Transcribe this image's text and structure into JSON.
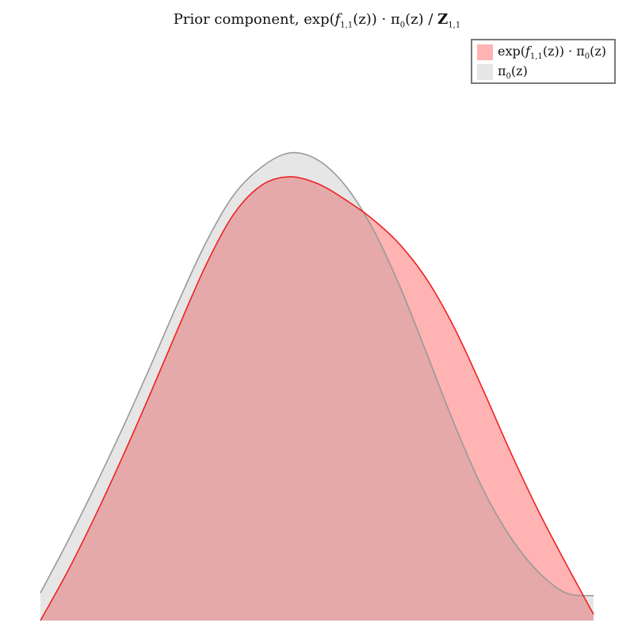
{
  "chart_data": {
    "type": "area",
    "title": "Prior component, exp(f1,1(z)) · π0(z) / Z1,1",
    "title_parts": {
      "prefix": "Prior component, exp(",
      "f": "f",
      "f_sub": "1,1",
      "mid": "(z)) · π",
      "pi_sub": "0",
      "tail": "(z) / ",
      "Z": "Z",
      "Z_sub": "1,1"
    },
    "xlabel": "",
    "ylabel": "",
    "axes_visible": false,
    "grid": false,
    "legend_placement": "top-right",
    "xlim": [
      0,
      1
    ],
    "ylim": [
      0,
      1.02
    ],
    "series": [
      {
        "name": "exp(f1,1(z)) · π0(z)",
        "legend_parts": {
          "prefix": "exp(",
          "f": "f",
          "f_sub": "1,1",
          "mid": "(z)) · π",
          "pi_sub": "0",
          "tail": "(z)"
        },
        "fill": "#ffb3b3",
        "line": "#ee2222",
        "x": [
          0,
          0.05,
          0.1,
          0.15,
          0.2,
          0.25,
          0.3,
          0.35,
          0.4,
          0.45,
          0.5,
          0.55,
          0.6,
          0.65,
          0.7,
          0.75,
          0.8,
          0.85,
          0.9,
          0.95,
          1
        ],
        "y": [
          0,
          0.107,
          0.226,
          0.354,
          0.489,
          0.628,
          0.762,
          0.87,
          0.931,
          0.949,
          0.935,
          0.901,
          0.859,
          0.804,
          0.727,
          0.622,
          0.494,
          0.36,
          0.235,
          0.122,
          0.013
        ]
      },
      {
        "name": "π0(z)",
        "legend_parts": {
          "prefix": "π",
          "pi_sub": "0",
          "tail": "(z)"
        },
        "fill": "#e6e6e6",
        "line": "#999999",
        "x": [
          0,
          0.05,
          0.1,
          0.15,
          0.2,
          0.25,
          0.3,
          0.35,
          0.4,
          0.45,
          0.5,
          0.55,
          0.6,
          0.65,
          0.7,
          0.75,
          0.8,
          0.85,
          0.9,
          0.95,
          1
        ],
        "y": [
          0.059,
          0.171,
          0.29,
          0.415,
          0.547,
          0.683,
          0.81,
          0.911,
          0.97,
          1.0,
          0.986,
          0.932,
          0.84,
          0.714,
          0.566,
          0.415,
          0.281,
          0.178,
          0.104,
          0.059,
          0.053
        ]
      }
    ],
    "overlap_fill": "#e5a9a9"
  }
}
